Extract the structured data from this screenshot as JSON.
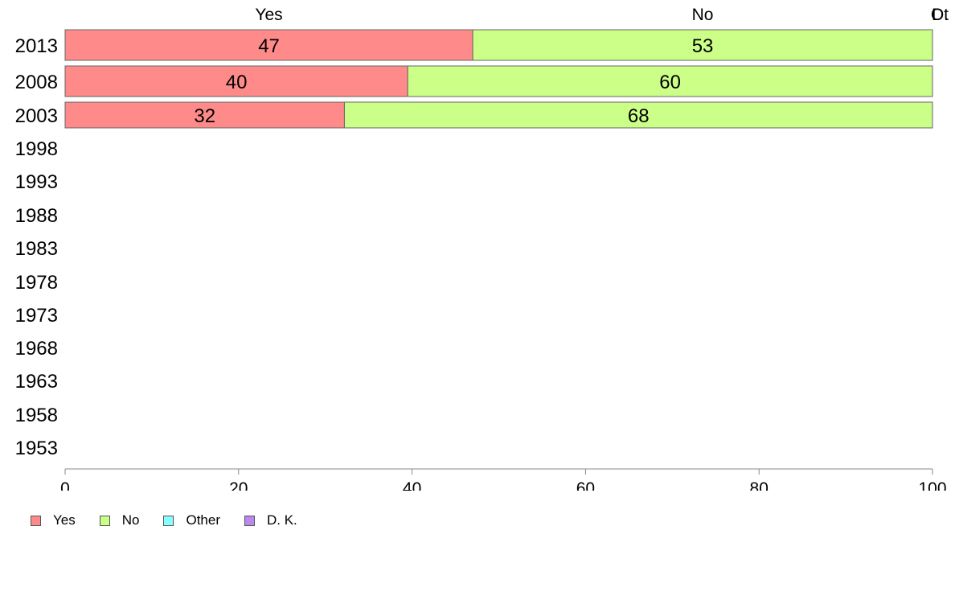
{
  "chart_data": {
    "type": "bar",
    "orientation": "horizontal",
    "stacked": true,
    "categories": [
      "2013",
      "2008",
      "2003",
      "1998",
      "1993",
      "1988",
      "1983",
      "1978",
      "1973",
      "1968",
      "1963",
      "1958",
      "1953"
    ],
    "series": [
      {
        "name": "Yes",
        "color": "#ff8a8a",
        "values": [
          47,
          39.5,
          32.2,
          null,
          null,
          null,
          null,
          null,
          null,
          null,
          null,
          null,
          null
        ],
        "labels": [
          "47",
          "40",
          "32"
        ]
      },
      {
        "name": "No",
        "color": "#ccff88",
        "values": [
          53,
          60.5,
          67.8,
          null,
          null,
          null,
          null,
          null,
          null,
          null,
          null,
          null,
          null
        ],
        "labels": [
          "53",
          "60",
          "68"
        ]
      },
      {
        "name": "Other",
        "color": "#88ffff",
        "values": [
          0,
          0,
          0,
          null,
          null,
          null,
          null,
          null,
          null,
          null,
          null,
          null,
          null
        ]
      },
      {
        "name": "D. K.",
        "color": "#bb88ee",
        "values": [
          0,
          0,
          0,
          null,
          null,
          null,
          null,
          null,
          null,
          null,
          null,
          null,
          null
        ]
      }
    ],
    "top_labels": [
      "Yes",
      "No",
      "Ot",
      "D."
    ],
    "xlim": [
      0,
      100
    ],
    "xticks": [
      "0",
      "20",
      "40",
      "60",
      "80",
      "100"
    ],
    "grid": false,
    "legend_position": "bottom-left"
  },
  "legend": {
    "items": [
      {
        "label": "Yes",
        "color": "#ff8a8a"
      },
      {
        "label": "No",
        "color": "#ccff88"
      },
      {
        "label": "Other",
        "color": "#88ffff"
      },
      {
        "label": "D. K.",
        "color": "#bb88ee"
      }
    ]
  }
}
